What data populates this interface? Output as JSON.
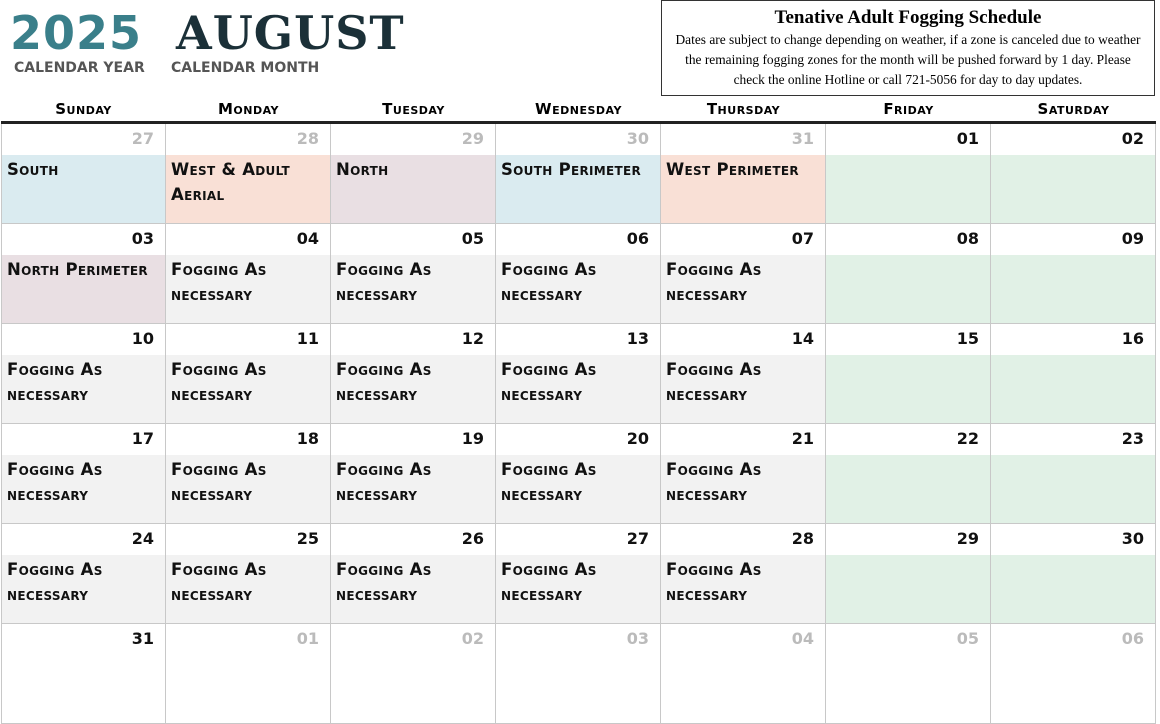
{
  "header": {
    "year": "2025",
    "month": "AUGUST",
    "year_label": "CALENDAR YEAR",
    "month_label": "CALENDAR MONTH"
  },
  "notice": {
    "title": "Tenative Adult Fogging Schedule",
    "body": "Dates are subject to change depending on weather, if a zone is canceled due to weather the remaining fogging zones for the month will be pushed forward by 1 day. Please check the online Hotline or call 721-5056 for day to day updates."
  },
  "colors": {
    "south": "#daebf0",
    "west": "#f9e0d6",
    "north": "#e9dfe3",
    "weekend": "#e1f1e6",
    "fogging": "#f2f2f2",
    "blank": "#ffffff"
  },
  "weekdays": [
    "Sunday",
    "Monday",
    "Tuesday",
    "Wednesday",
    "Thursday",
    "Friday",
    "Saturday"
  ],
  "weeks": [
    [
      {
        "d": "27",
        "muted": true,
        "text": "South",
        "color": "south"
      },
      {
        "d": "28",
        "muted": true,
        "text": "West & Adult Aerial",
        "color": "west"
      },
      {
        "d": "29",
        "muted": true,
        "text": "North",
        "color": "north"
      },
      {
        "d": "30",
        "muted": true,
        "text": "South Perimeter",
        "color": "south"
      },
      {
        "d": "31",
        "muted": true,
        "text": "West Perimeter",
        "color": "west"
      },
      {
        "d": "01",
        "text": "",
        "color": "weekend"
      },
      {
        "d": "02",
        "text": "",
        "color": "weekend"
      }
    ],
    [
      {
        "d": "03",
        "text": "North Perimeter",
        "color": "north"
      },
      {
        "d": "04",
        "text": "Fogging As necessary",
        "color": "fogging"
      },
      {
        "d": "05",
        "text": "Fogging As necessary",
        "color": "fogging"
      },
      {
        "d": "06",
        "text": "Fogging As necessary",
        "color": "fogging"
      },
      {
        "d": "07",
        "text": "Fogging As necessary",
        "color": "fogging"
      },
      {
        "d": "08",
        "text": "",
        "color": "weekend"
      },
      {
        "d": "09",
        "text": "",
        "color": "weekend"
      }
    ],
    [
      {
        "d": "10",
        "text": "Fogging As necessary",
        "color": "fogging"
      },
      {
        "d": "11",
        "text": "Fogging As necessary",
        "color": "fogging"
      },
      {
        "d": "12",
        "text": "Fogging As necessary",
        "color": "fogging"
      },
      {
        "d": "13",
        "text": "Fogging As necessary",
        "color": "fogging"
      },
      {
        "d": "14",
        "text": "Fogging As necessary",
        "color": "fogging"
      },
      {
        "d": "15",
        "text": "",
        "color": "weekend"
      },
      {
        "d": "16",
        "text": "",
        "color": "weekend"
      }
    ],
    [
      {
        "d": "17",
        "text": "Fogging As necessary",
        "color": "fogging"
      },
      {
        "d": "18",
        "text": "Fogging As necessary",
        "color": "fogging"
      },
      {
        "d": "19",
        "text": "Fogging As necessary",
        "color": "fogging"
      },
      {
        "d": "20",
        "text": "Fogging As necessary",
        "color": "fogging"
      },
      {
        "d": "21",
        "text": "Fogging As necessary",
        "color": "fogging"
      },
      {
        "d": "22",
        "text": "",
        "color": "weekend"
      },
      {
        "d": "23",
        "text": "",
        "color": "weekend"
      }
    ],
    [
      {
        "d": "24",
        "text": "Fogging As necessary",
        "color": "fogging"
      },
      {
        "d": "25",
        "text": "Fogging As necessary",
        "color": "fogging"
      },
      {
        "d": "26",
        "text": "Fogging As necessary",
        "color": "fogging"
      },
      {
        "d": "27",
        "text": "Fogging As necessary",
        "color": "fogging"
      },
      {
        "d": "28",
        "text": "Fogging As necessary",
        "color": "fogging"
      },
      {
        "d": "29",
        "text": "",
        "color": "weekend"
      },
      {
        "d": "30",
        "text": "",
        "color": "weekend"
      }
    ],
    [
      {
        "d": "31",
        "text": "",
        "color": "blank"
      },
      {
        "d": "01",
        "muted": true,
        "text": "",
        "color": "blank"
      },
      {
        "d": "02",
        "muted": true,
        "text": "",
        "color": "blank"
      },
      {
        "d": "03",
        "muted": true,
        "text": "",
        "color": "blank"
      },
      {
        "d": "04",
        "muted": true,
        "text": "",
        "color": "blank"
      },
      {
        "d": "05",
        "muted": true,
        "text": "",
        "color": "blank"
      },
      {
        "d": "06",
        "muted": true,
        "text": "",
        "color": "blank"
      }
    ]
  ]
}
